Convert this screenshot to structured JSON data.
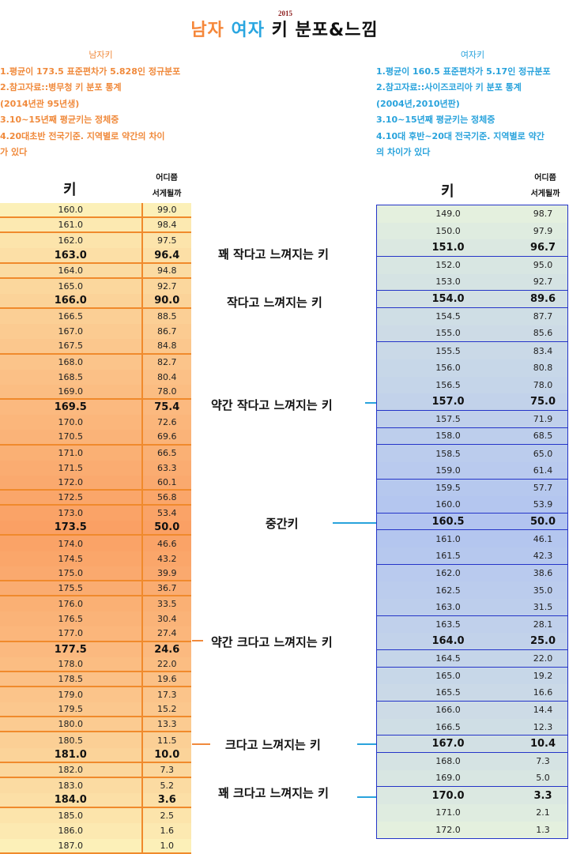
{
  "title": {
    "male": "남자",
    "female": "여자",
    "rest": "키 분포&느낌",
    "year": "2015"
  },
  "male_notes": {
    "header": "남자키",
    "lines": [
      "1.평균이 173.5 표준편차가 5.828인 정규분포",
      "2.참고자료::병무청 키 분포 통계",
      "(2014년관 95년생)",
      "3.10~15년째 평균키는 정체중",
      "4.20대초반 전국기준. 지역별로 약간의 차이",
      "가 있다"
    ]
  },
  "female_notes": {
    "header": "여자키",
    "lines": [
      "1.평균이 160.5 표준편차가 5.17인 정규분포",
      "2.참고자료::사이즈코리아 키 분포 통계",
      "(2004년,2010년판)",
      "3.10~15년째 평균키는 정체중",
      "4.10대 후반~20대 전국기준. 지역별로 약간",
      "의 차이가 있다"
    ]
  },
  "columns": {
    "height": "키",
    "rank_line1": "어디쯤",
    "rank_line2": "서게될까"
  },
  "labels": [
    "꽤 작다고 느껴지는 키",
    "작다고 느껴지는 키",
    "약간 작다고 느껴지는 키",
    "중간키",
    "약간 크다고 느껴지는 키",
    "크다고 느껴지는 키",
    "꽤 크다고 느껴지는 키"
  ],
  "colors": {
    "male_accent": "#f08a3c",
    "female_accent": "#29a3dc",
    "female_border": "#2434c8"
  },
  "chart_data": {
    "type": "table",
    "title": "남자 여자 키 분포&느낌 (2015)",
    "tables": [
      {
        "name": "남자키",
        "columns": [
          "키",
          "어디쯤 서게될까"
        ],
        "rows": [
          [
            160.0,
            99.0
          ],
          [
            161.0,
            98.4
          ],
          [
            162.0,
            97.5
          ],
          [
            163.0,
            96.4
          ],
          [
            164.0,
            94.8
          ],
          [
            165.0,
            92.7
          ],
          [
            166.0,
            90.0
          ],
          [
            166.5,
            88.5
          ],
          [
            167.0,
            86.7
          ],
          [
            167.5,
            84.8
          ],
          [
            168.0,
            82.7
          ],
          [
            168.5,
            80.4
          ],
          [
            169.0,
            78.0
          ],
          [
            169.5,
            75.4
          ],
          [
            170.0,
            72.6
          ],
          [
            170.5,
            69.6
          ],
          [
            171.0,
            66.5
          ],
          [
            171.5,
            63.3
          ],
          [
            172.0,
            60.1
          ],
          [
            172.5,
            56.8
          ],
          [
            173.0,
            53.4
          ],
          [
            173.5,
            50.0
          ],
          [
            174.0,
            46.6
          ],
          [
            174.5,
            43.2
          ],
          [
            175.0,
            39.9
          ],
          [
            175.5,
            36.7
          ],
          [
            176.0,
            33.5
          ],
          [
            176.5,
            30.4
          ],
          [
            177.0,
            27.4
          ],
          [
            177.5,
            24.6
          ],
          [
            178.0,
            22.0
          ],
          [
            178.5,
            19.6
          ],
          [
            179.0,
            17.3
          ],
          [
            179.5,
            15.2
          ],
          [
            180.0,
            13.3
          ],
          [
            180.5,
            11.5
          ],
          [
            181.0,
            10.0
          ],
          [
            182.0,
            7.3
          ],
          [
            183.0,
            5.2
          ],
          [
            184.0,
            3.6
          ],
          [
            185.0,
            2.5
          ],
          [
            186.0,
            1.6
          ],
          [
            187.0,
            1.0
          ]
        ]
      },
      {
        "name": "여자키",
        "columns": [
          "키",
          "어디쯤 서게될까"
        ],
        "rows": [
          [
            149.0,
            98.7
          ],
          [
            150.0,
            97.9
          ],
          [
            151.0,
            96.7
          ],
          [
            152.0,
            95.0
          ],
          [
            153.0,
            92.7
          ],
          [
            154.0,
            89.6
          ],
          [
            154.5,
            87.7
          ],
          [
            155.0,
            85.6
          ],
          [
            155.5,
            83.4
          ],
          [
            156.0,
            80.8
          ],
          [
            156.5,
            78.0
          ],
          [
            157.0,
            75.0
          ],
          [
            157.5,
            71.9
          ],
          [
            158.0,
            68.5
          ],
          [
            158.5,
            65.0
          ],
          [
            159.0,
            61.4
          ],
          [
            159.5,
            57.7
          ],
          [
            160.0,
            53.9
          ],
          [
            160.5,
            50.0
          ],
          [
            161.0,
            46.1
          ],
          [
            161.5,
            42.3
          ],
          [
            162.0,
            38.6
          ],
          [
            162.5,
            35.0
          ],
          [
            163.0,
            31.5
          ],
          [
            163.5,
            28.1
          ],
          [
            164.0,
            25.0
          ],
          [
            164.5,
            22.0
          ],
          [
            165.0,
            19.2
          ],
          [
            165.5,
            16.6
          ],
          [
            166.0,
            14.4
          ],
          [
            166.5,
            12.3
          ],
          [
            167.0,
            10.4
          ],
          [
            168.0,
            7.3
          ],
          [
            169.0,
            5.0
          ],
          [
            170.0,
            3.3
          ],
          [
            171.0,
            2.1
          ],
          [
            172.0,
            1.3
          ]
        ]
      }
    ],
    "annotations": [
      {
        "label": "꽤 작다고 느껴지는 키",
        "male": 163.0,
        "female": 151.0
      },
      {
        "label": "작다고 느껴지는 키",
        "male": 166.0,
        "female": 154.0
      },
      {
        "label": "약간 작다고 느껴지는 키",
        "male": 169.5,
        "female": 157.0
      },
      {
        "label": "중간키",
        "male": 173.5,
        "female": 160.5
      },
      {
        "label": "약간 크다고 느껴지는 키",
        "male": 177.5,
        "female": 164.0
      },
      {
        "label": "크다고 느껴지는 키",
        "male": 181.0,
        "female": 167.0
      },
      {
        "label": "꽤 크다고 느껴지는 키",
        "male": 184.0,
        "female": 170.0
      }
    ]
  }
}
